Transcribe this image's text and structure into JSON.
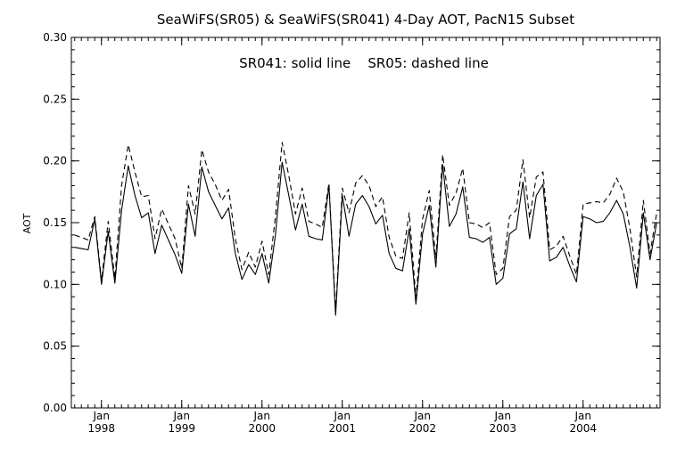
{
  "chart_data": {
    "type": "line",
    "title": "SeaWiFS(SR05) & SeaWiFS(SR041) 4-Day AOT, PacN15 Subset",
    "annotation": "SR041: solid line    SR05: dashed line",
    "ylabel": "AOT",
    "xlabel": "",
    "ylim": [
      0.0,
      0.3
    ],
    "xlim": [
      "1997-09",
      "2004-12"
    ],
    "y_ticks": [
      "0.00",
      "0.05",
      "0.10",
      "0.15",
      "0.20",
      "0.25",
      "0.30"
    ],
    "x_ticks": [
      {
        "month": "Jan",
        "year": "1998",
        "date": "1998-01"
      },
      {
        "month": "Jan",
        "year": "1999",
        "date": "1999-01"
      },
      {
        "month": "Jan",
        "year": "2000",
        "date": "2000-01"
      },
      {
        "month": "Jan",
        "year": "2001",
        "date": "2001-01"
      },
      {
        "month": "Jan",
        "year": "2002",
        "date": "2002-01"
      },
      {
        "month": "Jan",
        "year": "2003",
        "date": "2003-01"
      },
      {
        "month": "Jan",
        "year": "2004",
        "date": "2004-01"
      }
    ],
    "x": [
      "1997-09",
      "1997-10",
      "1997-11",
      "1997-12",
      "1998-01",
      "1998-02",
      "1998-03",
      "1998-04",
      "1998-05",
      "1998-06",
      "1998-07",
      "1998-08",
      "1998-09",
      "1998-10",
      "1998-11",
      "1998-12",
      "1999-01",
      "1999-02",
      "1999-03",
      "1999-04",
      "1999-05",
      "1999-06",
      "1999-07",
      "1999-08",
      "1999-09",
      "1999-10",
      "1999-11",
      "1999-12",
      "2000-01",
      "2000-02",
      "2000-03",
      "2000-04",
      "2000-05",
      "2000-06",
      "2000-07",
      "2000-08",
      "2000-09",
      "2000-10",
      "2000-11",
      "2000-12",
      "2001-01",
      "2001-02",
      "2001-03",
      "2001-04",
      "2001-05",
      "2001-06",
      "2001-07",
      "2001-08",
      "2001-09",
      "2001-10",
      "2001-11",
      "2001-12",
      "2002-01",
      "2002-02",
      "2002-03",
      "2002-04",
      "2002-05",
      "2002-06",
      "2002-07",
      "2002-08",
      "2002-09",
      "2002-10",
      "2002-11",
      "2002-12",
      "2003-01",
      "2003-02",
      "2003-03",
      "2003-04",
      "2003-05",
      "2003-06",
      "2003-07",
      "2003-08",
      "2003-09",
      "2003-10",
      "2003-11",
      "2003-12",
      "2004-01",
      "2004-02",
      "2004-03",
      "2004-04",
      "2004-05",
      "2004-06",
      "2004-07",
      "2004-08",
      "2004-09",
      "2004-10",
      "2004-11",
      "2004-12"
    ],
    "series": [
      {
        "name": "SR041",
        "style": "solid",
        "color": "#000000",
        "values": [
          0.13,
          0.129,
          0.128,
          0.153,
          0.1,
          0.143,
          0.101,
          0.16,
          0.196,
          0.172,
          0.154,
          0.158,
          0.125,
          0.148,
          0.136,
          0.124,
          0.109,
          0.165,
          0.139,
          0.195,
          0.175,
          0.164,
          0.153,
          0.162,
          0.125,
          0.104,
          0.116,
          0.108,
          0.125,
          0.101,
          0.14,
          0.199,
          0.172,
          0.144,
          0.165,
          0.139,
          0.137,
          0.136,
          0.18,
          0.075,
          0.172,
          0.139,
          0.165,
          0.172,
          0.163,
          0.149,
          0.156,
          0.125,
          0.113,
          0.111,
          0.145,
          0.084,
          0.141,
          0.164,
          0.114,
          0.197,
          0.147,
          0.157,
          0.179,
          0.138,
          0.137,
          0.134,
          0.138,
          0.1,
          0.105,
          0.141,
          0.145,
          0.183,
          0.137,
          0.172,
          0.181,
          0.119,
          0.122,
          0.13,
          0.115,
          0.102,
          0.155,
          0.153,
          0.15,
          0.151,
          0.158,
          0.168,
          0.157,
          0.13,
          0.097,
          0.158,
          0.12,
          0.15
        ]
      },
      {
        "name": "SR05",
        "style": "dashed",
        "color": "#000000",
        "values": [
          0.14,
          0.138,
          0.136,
          0.155,
          0.103,
          0.151,
          0.105,
          0.18,
          0.213,
          0.191,
          0.171,
          0.172,
          0.137,
          0.161,
          0.149,
          0.137,
          0.113,
          0.18,
          0.157,
          0.209,
          0.191,
          0.181,
          0.168,
          0.177,
          0.137,
          0.112,
          0.126,
          0.114,
          0.135,
          0.108,
          0.155,
          0.215,
          0.188,
          0.157,
          0.178,
          0.151,
          0.149,
          0.146,
          0.182,
          0.078,
          0.178,
          0.158,
          0.182,
          0.188,
          0.18,
          0.163,
          0.171,
          0.138,
          0.123,
          0.121,
          0.158,
          0.089,
          0.153,
          0.176,
          0.121,
          0.205,
          0.164,
          0.174,
          0.194,
          0.15,
          0.149,
          0.146,
          0.15,
          0.108,
          0.113,
          0.155,
          0.16,
          0.201,
          0.154,
          0.187,
          0.191,
          0.128,
          0.131,
          0.139,
          0.123,
          0.108,
          0.165,
          0.166,
          0.167,
          0.166,
          0.173,
          0.186,
          0.175,
          0.145,
          0.106,
          0.168,
          0.125,
          0.158
        ]
      }
    ],
    "grid": false,
    "legend": "annotation top-center"
  }
}
